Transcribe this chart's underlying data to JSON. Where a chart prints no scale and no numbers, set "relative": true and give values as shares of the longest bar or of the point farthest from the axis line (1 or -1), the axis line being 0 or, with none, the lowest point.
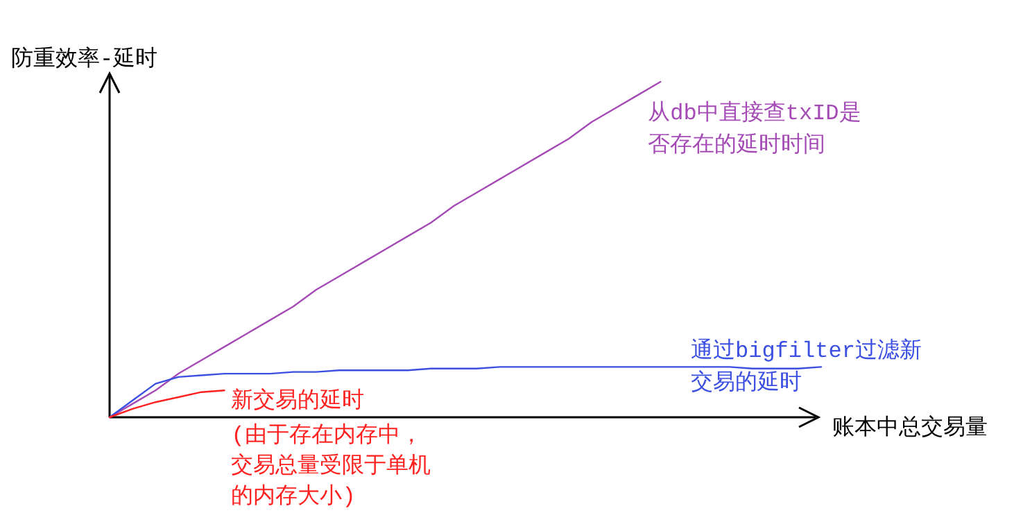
{
  "chart_data": {
    "type": "line",
    "relative": true,
    "ylabel": "防重效率-延时",
    "xlabel": "账本中总交易量",
    "categories": [
      null,
      null,
      null,
      null,
      null,
      null,
      null,
      null,
      null,
      null,
      null,
      null,
      null,
      null,
      null,
      null,
      null,
      null,
      null,
      null,
      null,
      null,
      null,
      null,
      null,
      null,
      null,
      null,
      null,
      null,
      null,
      null
    ],
    "series": [
      {
        "name": "从db中直接查txID是否存在的延时时间",
        "color": "#a54bb5",
        "values": [
          0,
          0.04,
          0.08,
          0.13,
          0.17,
          0.21,
          0.25,
          0.29,
          0.33,
          0.38,
          0.42,
          0.46,
          0.5,
          0.54,
          0.58,
          0.63,
          0.67,
          0.71,
          0.75,
          0.79,
          0.83,
          0.88,
          0.92,
          0.96,
          1,
          null,
          null,
          null,
          null,
          null,
          null,
          null
        ]
      },
      {
        "name": "通过bigfilter过滤新交易的延时",
        "color": "#3b4fe0",
        "values": [
          0,
          0.05,
          0.1,
          0.12,
          0.125,
          0.13,
          0.13,
          0.13,
          0.135,
          0.135,
          0.14,
          0.14,
          0.14,
          0.14,
          0.145,
          0.145,
          0.145,
          0.15,
          0.15,
          0.15,
          0.15,
          0.15,
          0.15,
          0.15,
          0.15,
          0.15,
          0.15,
          0.15,
          0.145,
          0.145,
          0.145,
          0.15
        ]
      },
      {
        "name": "新交易的延时",
        "color": "#ff2020",
        "values": [
          0,
          0.025,
          0.045,
          0.06,
          0.075,
          0.08,
          null,
          null,
          null,
          null,
          null,
          null,
          null,
          null,
          null,
          null,
          null,
          null,
          null,
          null,
          null,
          null,
          null,
          null,
          null,
          null,
          null,
          null,
          null,
          null,
          null,
          null
        ]
      }
    ],
    "annotations": [
      {
        "text": "(由于存在内存中，交易总量受限于单机的内存大小)"
      }
    ],
    "grid": false
  }
}
